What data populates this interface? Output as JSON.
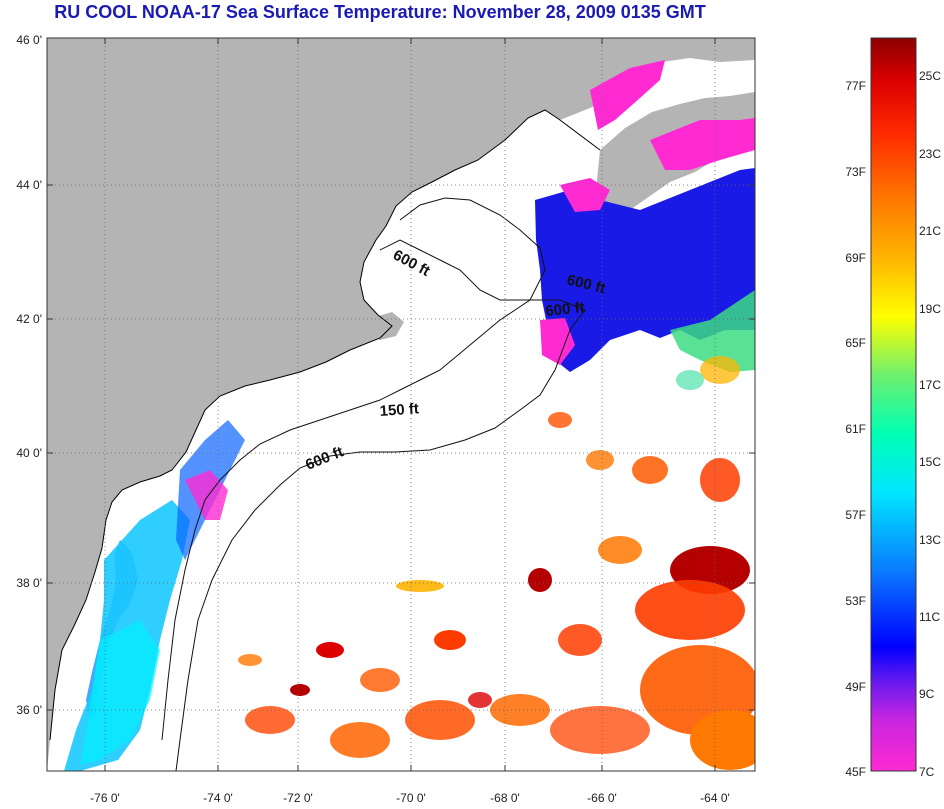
{
  "title": "RU COOL  NOAA-17  Sea Surface Temperature:  November 28, 2009 0135 GMT",
  "map": {
    "lon_ticks": [
      "-76 0'",
      "-74 0'",
      "-72 0'",
      "-70 0'",
      "-68 0'",
      "-66 0'",
      "-64 0'"
    ],
    "lat_ticks": [
      "46 0'",
      "44 0'",
      "42 0'",
      "40 0'",
      "38 0'",
      "36 0'"
    ],
    "contour_labels": [
      "600 ft",
      "600 ft",
      "600 ft",
      "150 ft",
      "600 ft"
    ]
  },
  "colorbar": {
    "fahrenheit": [
      "77F",
      "73F",
      "69F",
      "65F",
      "61F",
      "57F",
      "53F",
      "49F",
      "45F"
    ],
    "celsius": [
      "25C",
      "23C",
      "21C",
      "19C",
      "17C",
      "15C",
      "13C",
      "11C",
      "9C",
      "7C"
    ]
  },
  "colors": {
    "land": "#b4b4b4",
    "title": "#1a1ab4",
    "scale": [
      "#ff2ad2",
      "#9b1fe6",
      "#0000ff",
      "#0a78ff",
      "#00e6ff",
      "#00ffb4",
      "#6ef06e",
      "#ffff00",
      "#ffb400",
      "#ff7800",
      "#ff2a00",
      "#dc0000",
      "#8c0000"
    ]
  }
}
